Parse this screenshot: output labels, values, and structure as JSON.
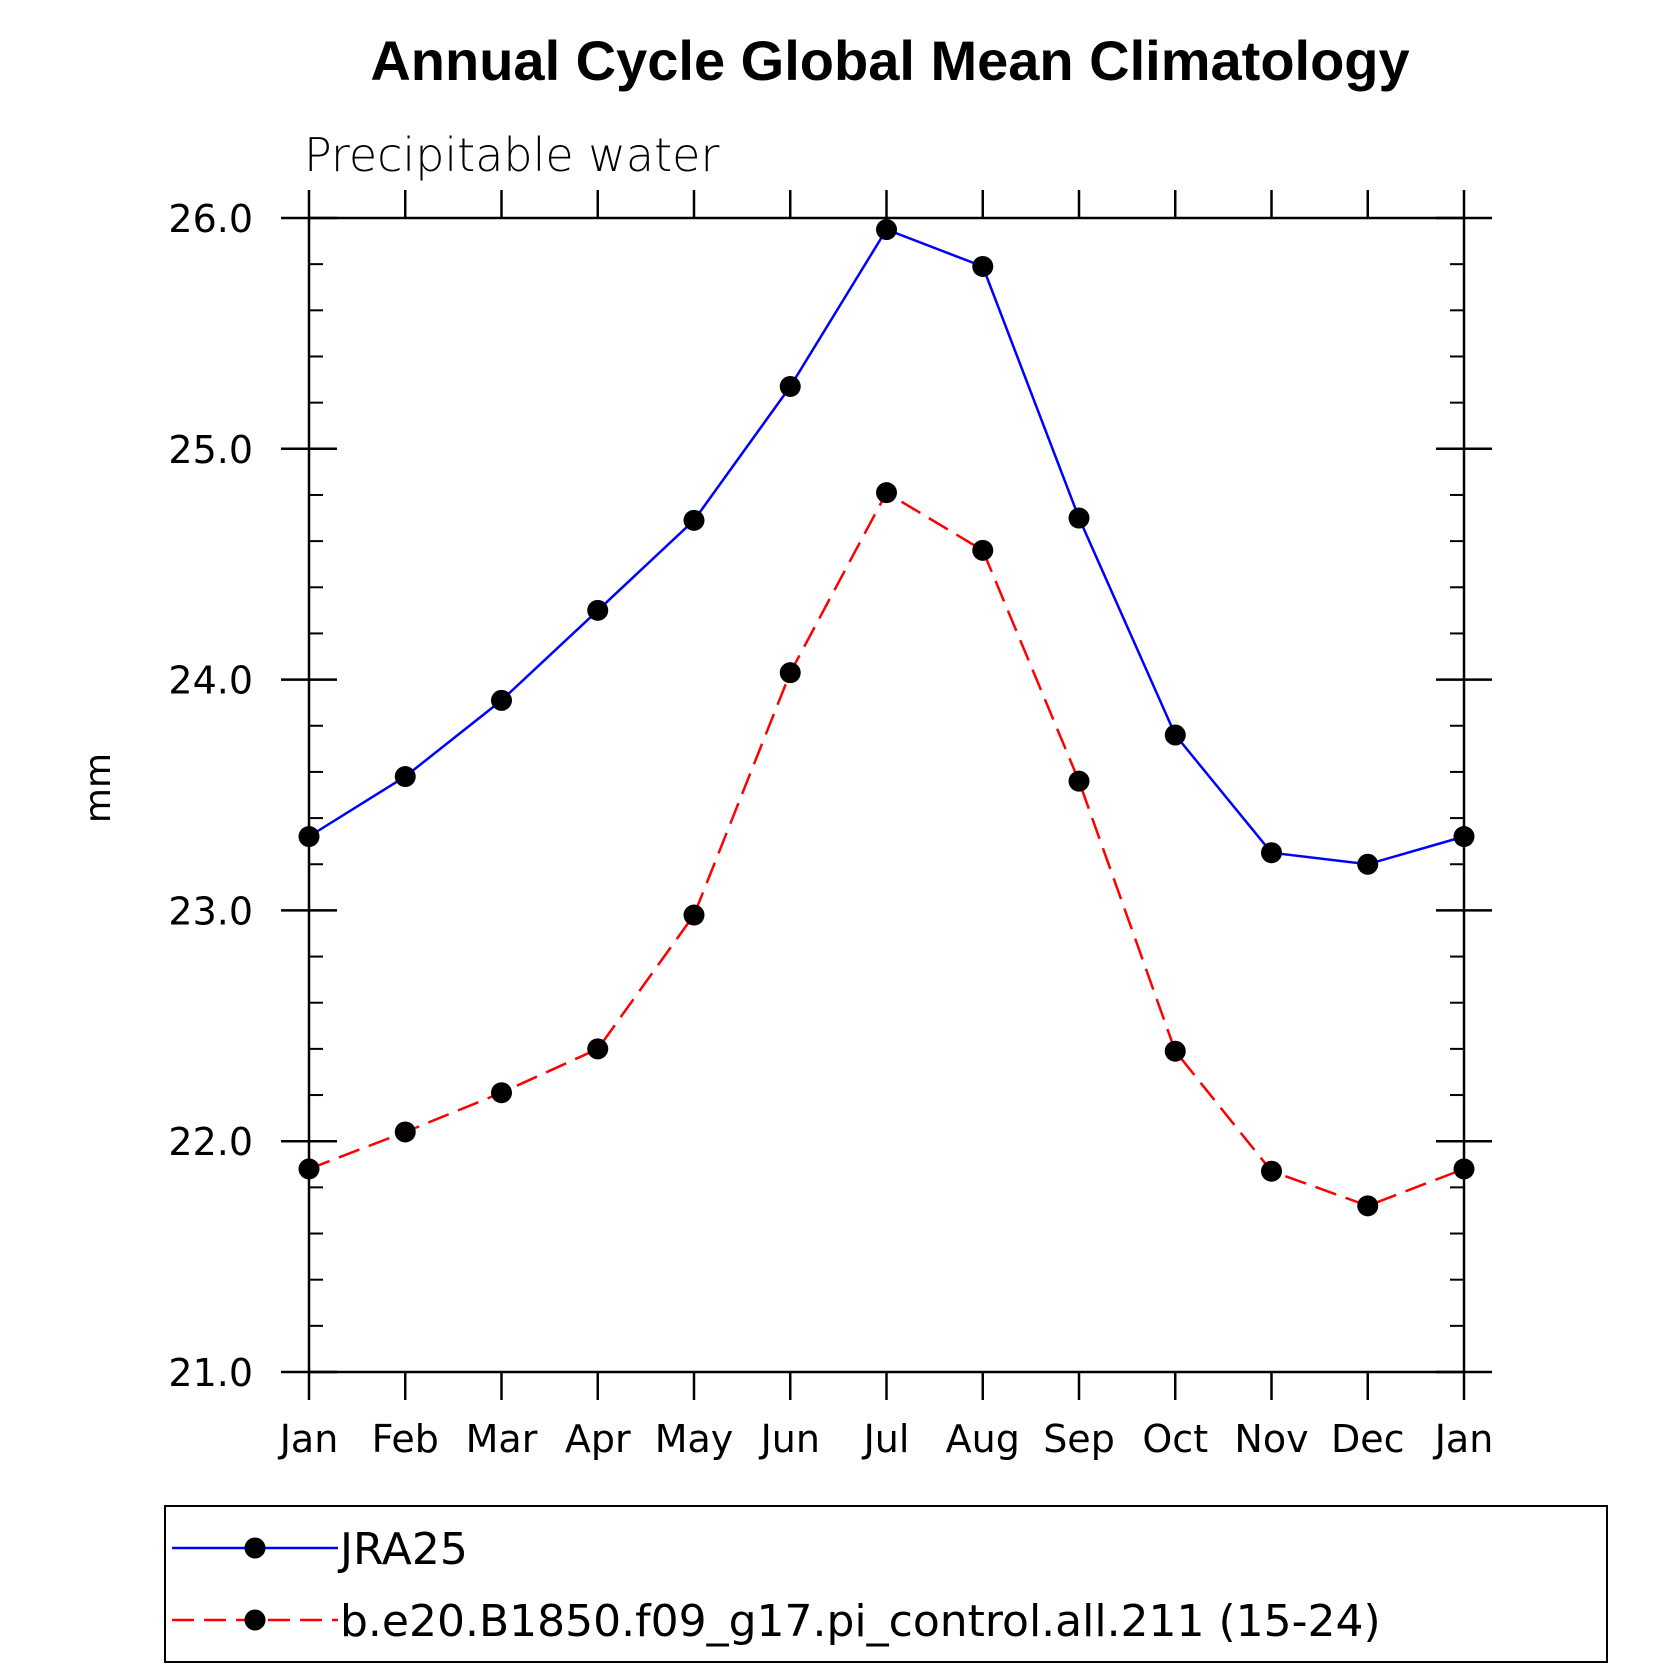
{
  "chart_data": {
    "type": "line",
    "title": "Annual Cycle Global Mean Climatology",
    "subtitle": "Precipitable water",
    "ylabel": "mm",
    "xlabel": "",
    "categories": [
      "Jan",
      "Feb",
      "Mar",
      "Apr",
      "May",
      "Jun",
      "Jul",
      "Aug",
      "Sep",
      "Oct",
      "Nov",
      "Dec",
      "Jan"
    ],
    "ylim": [
      21.0,
      26.0
    ],
    "yticks": [
      "21.0",
      "22.0",
      "23.0",
      "24.0",
      "25.0",
      "26.0"
    ],
    "y_tick_values": [
      21,
      22,
      23,
      24,
      25,
      26
    ],
    "y_minor_step": 0.2,
    "grid": false,
    "legend_position": "bottom",
    "series": [
      {
        "name": "JRA25",
        "color": "#0000ff",
        "line_style": "solid",
        "marker": "filled-circle",
        "values": [
          23.32,
          23.58,
          23.91,
          24.3,
          24.69,
          25.27,
          25.95,
          25.79,
          24.7,
          23.76,
          23.25,
          23.2,
          23.32
        ]
      },
      {
        "name": "b.e20.B1850.f09_g17.pi_control.all.211 (15-24)",
        "color": "#ff0000",
        "line_style": "dashed",
        "marker": "filled-circle",
        "values": [
          21.88,
          22.04,
          22.21,
          22.4,
          22.98,
          24.03,
          24.81,
          24.56,
          23.56,
          22.39,
          21.87,
          21.72,
          21.88
        ]
      }
    ]
  }
}
